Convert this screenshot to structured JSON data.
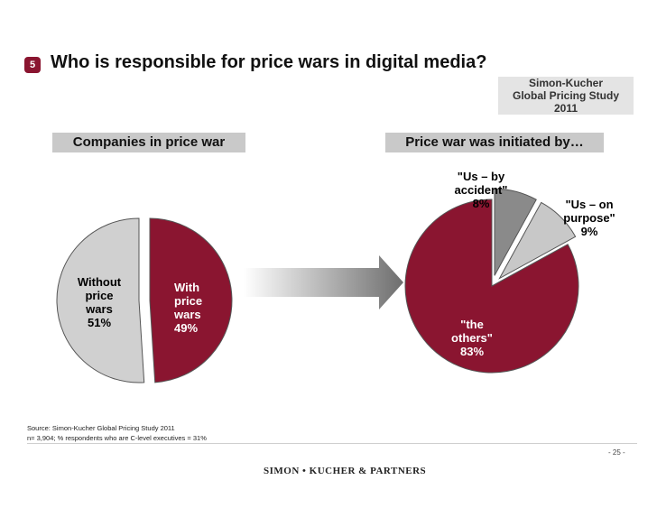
{
  "slide": {
    "number": "5",
    "title": "Who is responsible for price wars in digital media?"
  },
  "study": {
    "line1": "Simon-Kucher",
    "line2": "Global Pricing Study",
    "line3": "2011"
  },
  "chart_data": [
    {
      "type": "pie",
      "title": "Companies in price war",
      "slices": [
        {
          "label": "Without price wars",
          "value": 51,
          "color": "#d0d0d0",
          "text": [
            "Without",
            "price",
            "wars",
            "51%"
          ]
        },
        {
          "label": "With price wars",
          "value": 49,
          "color": "#8a1530",
          "text": [
            "With",
            "price",
            "wars",
            "49%"
          ]
        }
      ]
    },
    {
      "type": "pie",
      "title": "Price war was initiated by…",
      "slices": [
        {
          "label": "\"the others\"",
          "value": 83,
          "color": "#8a1530",
          "text": [
            "\"the",
            "others\"",
            "83%"
          ]
        },
        {
          "label": "\"Us – by accident\"",
          "value": 8,
          "color": "#8a8a8a",
          "text": [
            "\"Us – by",
            "accident\"",
            "8%"
          ]
        },
        {
          "label": "\"Us – on purpose\"",
          "value": 9,
          "color": "#c8c8c8",
          "text": [
            "\"Us – on",
            "purpose\"",
            "9%"
          ]
        }
      ]
    }
  ],
  "source": {
    "line1": "Source: Simon-Kucher Global Pricing Study 2011",
    "line2": "n= 3,904; % respondents who are C-level executives = 31%"
  },
  "page_number": "- 25 -",
  "brand": "SIMON • KUCHER & PARTNERS",
  "icons": {
    "arrow": "right-arrow-gradient"
  }
}
